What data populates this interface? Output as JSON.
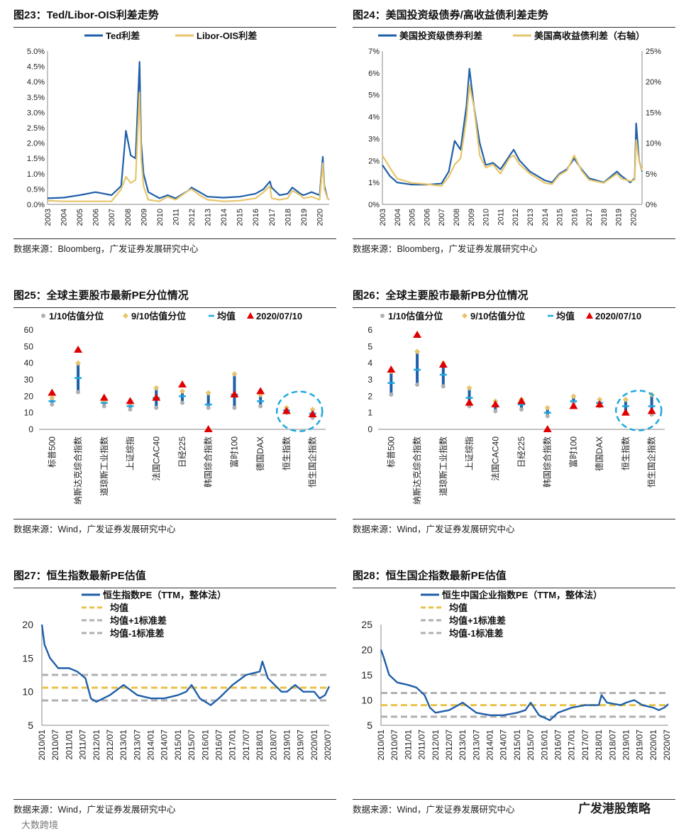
{
  "colors": {
    "blue": "#1f5fa8",
    "gold": "#e6c56a",
    "gray": "#b0b0b0",
    "red": "#e00000",
    "cyan": "#1ea8e0",
    "dash_gold": "#e8c24a"
  },
  "watermark": "大数跨境",
  "brand": "广发港股策略",
  "panels": [
    {
      "title": "图23：Ted/Libor-OIS利差走势",
      "source": "数据来源：Bloomberg，广发证券发展研究中心",
      "chart_data": {
        "type": "line",
        "title": "Ted/Libor-OIS利差走势",
        "series": [
          {
            "name": "Ted利差",
            "x": [
              2003,
              2004,
              2005,
              2006,
              2007,
              2007.6,
              2007.9,
              2008.2,
              2008.5,
              2008.75,
              2008.85,
              2009.0,
              2009.3,
              2010,
              2010.5,
              2011,
              2011.8,
              2012,
              2012.5,
              2013,
              2014,
              2015,
              2016,
              2016.5,
              2016.9,
              2017,
              2017.5,
              2018,
              2018.3,
              2018.8,
              2019,
              2019.5,
              2020.0,
              2020.2,
              2020.3,
              2020.5,
              2020.6
            ],
            "values": [
              0.2,
              0.22,
              0.3,
              0.4,
              0.3,
              0.6,
              2.4,
              1.6,
              1.5,
              4.65,
              2.0,
              1.0,
              0.4,
              0.2,
              0.3,
              0.2,
              0.45,
              0.55,
              0.4,
              0.25,
              0.22,
              0.25,
              0.35,
              0.5,
              0.75,
              0.55,
              0.3,
              0.35,
              0.55,
              0.35,
              0.3,
              0.4,
              0.3,
              1.55,
              0.6,
              0.2,
              0.15
            ]
          },
          {
            "name": "Libor-OIS利差",
            "x": [
              2003,
              2004,
              2005,
              2006,
              2007,
              2007.6,
              2007.9,
              2008.2,
              2008.5,
              2008.75,
              2008.85,
              2009.0,
              2009.3,
              2010,
              2010.5,
              2011,
              2011.8,
              2012,
              2012.5,
              2013,
              2014,
              2015,
              2016,
              2016.5,
              2016.9,
              2017,
              2017.5,
              2018,
              2018.3,
              2018.8,
              2019,
              2019.5,
              2020.0,
              2020.2,
              2020.3,
              2020.5,
              2020.6
            ],
            "values": [
              0.12,
              0.1,
              0.1,
              0.1,
              0.1,
              0.5,
              0.9,
              0.7,
              0.8,
              3.65,
              1.5,
              0.6,
              0.15,
              0.1,
              0.25,
              0.15,
              0.45,
              0.5,
              0.3,
              0.15,
              0.1,
              0.12,
              0.2,
              0.4,
              0.6,
              0.2,
              0.15,
              0.2,
              0.45,
              0.3,
              0.2,
              0.25,
              0.15,
              1.35,
              0.5,
              0.2,
              0.15
            ]
          }
        ],
        "xlabel": "",
        "ylabel": "",
        "ylim": [
          0,
          5.0
        ],
        "yticks": [
          "0.0%",
          "0.5%",
          "1.0%",
          "1.5%",
          "2.0%",
          "2.5%",
          "3.0%",
          "3.5%",
          "4.0%",
          "4.5%",
          "5.0%"
        ],
        "xticks": [
          "2003",
          "2004",
          "2005",
          "2006",
          "2007",
          "2008",
          "2009",
          "2010",
          "2011",
          "2012",
          "2013",
          "2014",
          "2015",
          "2016",
          "2017",
          "2018",
          "2019",
          "2020"
        ]
      }
    },
    {
      "title": "图24：美国投资级债券/高收益债利差走势",
      "source": "数据来源：Bloomberg，广发证券发展研究中心",
      "chart_data": {
        "type": "line",
        "title": "美国投资级债券/高收益债利差走势",
        "series": [
          {
            "name": "美国投资级债券利差",
            "axis": "left",
            "x": [
              2003,
              2003.5,
              2004,
              2005,
              2006,
              2007,
              2007.5,
              2007.9,
              2008.3,
              2008.7,
              2008.9,
              2009.2,
              2009.6,
              2010,
              2010.5,
              2011,
              2011.6,
              2011.9,
              2012.3,
              2013,
              2014,
              2014.5,
              2015,
              2015.5,
              2016.0,
              2016.5,
              2017,
              2018,
              2018.9,
              2019.2,
              2019.8,
              2020.1,
              2020.2,
              2020.4,
              2020.6
            ],
            "values": [
              1.8,
              1.3,
              1.0,
              0.9,
              0.9,
              0.95,
              1.5,
              2.9,
              2.5,
              4.5,
              6.2,
              4.5,
              2.8,
              1.8,
              1.9,
              1.6,
              2.2,
              2.5,
              2.0,
              1.5,
              1.1,
              1.0,
              1.4,
              1.6,
              2.1,
              1.6,
              1.2,
              1.0,
              1.5,
              1.3,
              1.0,
              1.2,
              3.7,
              2.0,
              1.5
            ]
          },
          {
            "name": "美国高收益债利差（右轴）",
            "axis": "right",
            "x": [
              2003,
              2003.5,
              2004,
              2005,
              2006,
              2007,
              2007.5,
              2007.9,
              2008.3,
              2008.7,
              2008.9,
              2009.2,
              2009.6,
              2010,
              2010.5,
              2011,
              2011.6,
              2011.9,
              2012.3,
              2013,
              2014,
              2014.5,
              2015,
              2015.5,
              2016.0,
              2016.5,
              2017,
              2018,
              2018.9,
              2019.2,
              2019.8,
              2020.1,
              2020.2,
              2020.4,
              2020.6
            ],
            "values": [
              8.0,
              6.0,
              4.2,
              3.5,
              3.3,
              3.0,
              4.5,
              6.5,
              7.5,
              14.0,
              19.5,
              16.0,
              8.0,
              6.0,
              6.5,
              5.0,
              7.5,
              8.0,
              6.5,
              5.0,
              3.5,
              3.3,
              4.8,
              5.5,
              8.0,
              5.5,
              4.0,
              3.5,
              5.0,
              4.2,
              3.8,
              4.0,
              10.5,
              7.0,
              5.5
            ]
          }
        ],
        "ylim": [
          0,
          7
        ],
        "ylim_right": [
          0,
          25
        ],
        "yticks": [
          "0%",
          "1%",
          "2%",
          "3%",
          "4%",
          "5%",
          "6%",
          "7%"
        ],
        "yticks_right": [
          "0%",
          "5%",
          "10%",
          "15%",
          "20%",
          "25%"
        ],
        "xticks": [
          "2003",
          "2004",
          "2005",
          "2006",
          "2007",
          "2008",
          "2009",
          "2010",
          "2011",
          "2012",
          "2013",
          "2014",
          "2015",
          "2016",
          "2017",
          "2018",
          "2019",
          "2020"
        ]
      }
    },
    {
      "title": "图25：全球主要股市最新PE分位情况",
      "source": "数据来源：Wind，广发证券发展研究中心",
      "chart_data": {
        "type": "scatter",
        "title": "全球主要股市最新PE分位情况",
        "categories": [
          "标普500",
          "纳斯达克综合指数",
          "道琼斯工业指数",
          "上证综指",
          "法国CAC40",
          "日经225",
          "韩国综合指数",
          "富时100",
          "德国DAX",
          "恒生指数",
          "恒生国企指数"
        ],
        "series": [
          {
            "name": "1/10估值分位",
            "values": [
              15,
              22.5,
              14,
              12,
              13,
              16,
              13,
              13,
              14,
              10,
              7
            ]
          },
          {
            "name": "9/10估值分位",
            "values": [
              19,
              40,
              17,
              16,
              25,
              23,
              22,
              33.5,
              21,
              13,
              12
            ]
          },
          {
            "name": "均值",
            "values": [
              17,
              31,
              16,
              14,
              19,
              20,
              15,
              21,
              17,
              11.5,
              9.5
            ]
          },
          {
            "name": "2020/07/10",
            "values": [
              22,
              48,
              19,
              17,
              19,
              27,
              0,
              21,
              23,
              11,
              9
            ]
          }
        ],
        "ylim": [
          0,
          60
        ],
        "yticks": [
          "0",
          "10",
          "20",
          "30",
          "40",
          "50",
          "60"
        ],
        "highlight": [
          "恒生指数",
          "恒生国企指数"
        ]
      }
    },
    {
      "title": "图26：全球主要股市最新PB分位情况",
      "source": "数据来源：Wind，广发证券发展研究中心",
      "chart_data": {
        "type": "scatter",
        "title": "全球主要股市最新PB分位情况",
        "categories": [
          "标普500",
          "纳斯达克综合指数",
          "道琼斯工业指数",
          "上证综指",
          "法国CAC40",
          "日经225",
          "韩国综合指数",
          "富时100",
          "德国DAX",
          "恒生指数",
          "恒生国企指数"
        ],
        "series": [
          {
            "name": "1/10估值分位",
            "values": [
              2.1,
              2.7,
              2.6,
              1.4,
              1.1,
              1.2,
              0.8,
              1.6,
              1.4,
              1.0,
              0.9
            ]
          },
          {
            "name": "9/10估值分位",
            "values": [
              3.5,
              4.7,
              4.0,
              2.5,
              1.7,
              1.8,
              1.3,
              2.0,
              1.8,
              1.8,
              2.1
            ]
          },
          {
            "name": "均值",
            "values": [
              2.8,
              3.6,
              3.3,
              1.9,
              1.4,
              1.5,
              1.0,
              1.7,
              1.6,
              1.4,
              1.4
            ]
          },
          {
            "name": "2020/07/10",
            "values": [
              3.6,
              5.7,
              3.9,
              1.6,
              1.5,
              1.7,
              0,
              1.4,
              1.5,
              1.0,
              1.1
            ]
          }
        ],
        "ylim": [
          0,
          6
        ],
        "yticks": [
          "0",
          "1",
          "2",
          "3",
          "4",
          "5",
          "6"
        ],
        "highlight": [
          "恒生指数",
          "恒生国企指数"
        ]
      }
    },
    {
      "title": "图27：恒生指数最新PE估值",
      "source": "数据来源：Wind，广发证券发展研究中心",
      "chart_data": {
        "type": "line",
        "title": "恒生指数最新PE估值",
        "series": [
          {
            "name": "恒生指数PE（TTM，整体法）",
            "x": [
              2010.0,
              2010.1,
              2010.3,
              2010.6,
              2011.0,
              2011.3,
              2011.6,
              2011.8,
              2012.0,
              2012.5,
              2013.0,
              2013.5,
              2014.0,
              2014.5,
              2015.0,
              2015.3,
              2015.5,
              2015.8,
              2016.0,
              2016.2,
              2016.5,
              2017.0,
              2017.5,
              2018.0,
              2018.1,
              2018.3,
              2018.8,
              2019.0,
              2019.3,
              2019.6,
              2020.0,
              2020.2,
              2020.4,
              2020.55
            ],
            "values": [
              20,
              17,
              15,
              13.5,
              13.5,
              13,
              12,
              9,
              8.5,
              9.5,
              11,
              9.5,
              9,
              9,
              9.5,
              10,
              11,
              9,
              8.5,
              8,
              9,
              11,
              12.5,
              13,
              14.5,
              12,
              10,
              10,
              11,
              10,
              10,
              9,
              9.5,
              10.8
            ]
          },
          {
            "name": "均值",
            "value": 10.6
          },
          {
            "name": "均值+1标准差",
            "value": 12.5
          },
          {
            "name": "均值-1标准差",
            "value": 8.7
          }
        ],
        "ylim": [
          5,
          20
        ],
        "yticks": [
          "5",
          "10",
          "15",
          "20"
        ],
        "xticks": [
          "2010/01",
          "2010/07",
          "2011/01",
          "2011/07",
          "2012/01",
          "2012/07",
          "2013/01",
          "2013/07",
          "2014/01",
          "2014/07",
          "2015/01",
          "2015/07",
          "2016/01",
          "2016/07",
          "2017/01",
          "2017/07",
          "2018/01",
          "2018/07",
          "2019/01",
          "2019/07",
          "2020/01",
          "2020/07"
        ]
      }
    },
    {
      "title": "图28：恒生国企指数最新PE估值",
      "source": "数据来源：Wind，广发证券发展研究中心",
      "chart_data": {
        "type": "line",
        "title": "恒生国企指数最新PE估值",
        "series": [
          {
            "name": "恒生中国企业指数PE（TTM，整体法）",
            "x": [
              2010.0,
              2010.1,
              2010.3,
              2010.6,
              2011.0,
              2011.3,
              2011.6,
              2011.8,
              2012.0,
              2012.5,
              2013.0,
              2013.5,
              2014.0,
              2014.5,
              2015.0,
              2015.3,
              2015.5,
              2015.8,
              2016.0,
              2016.2,
              2016.5,
              2017.0,
              2017.5,
              2018.0,
              2018.1,
              2018.3,
              2018.8,
              2019.0,
              2019.3,
              2019.6,
              2020.0,
              2020.2,
              2020.4,
              2020.55
            ],
            "values": [
              20,
              18.5,
              15,
              13.5,
              13,
              12.5,
              11,
              8.5,
              7.5,
              8,
              9.5,
              7.5,
              7,
              7,
              7.5,
              8,
              9.5,
              7,
              6.5,
              6,
              7.5,
              8.5,
              9,
              9,
              11,
              9.5,
              9,
              9.5,
              10,
              9,
              8.5,
              8,
              8.5,
              9.2
            ]
          },
          {
            "name": "均值",
            "value": 9.0
          },
          {
            "name": "均值+1标准差",
            "value": 11.4
          },
          {
            "name": "均值-1标准差",
            "value": 6.7
          }
        ],
        "ylim": [
          5,
          25
        ],
        "yticks": [
          "5",
          "10",
          "15",
          "20",
          "25"
        ],
        "xticks": [
          "2010/01",
          "2010/07",
          "2011/01",
          "2011/07",
          "2012/01",
          "2012/07",
          "2013/01",
          "2013/07",
          "2014/01",
          "2014/07",
          "2015/01",
          "2015/07",
          "2016/01",
          "2016/07",
          "2017/01",
          "2017/07",
          "2018/01",
          "2018/07",
          "2019/01",
          "2019/07",
          "2020/01",
          "2020/07"
        ]
      }
    }
  ]
}
